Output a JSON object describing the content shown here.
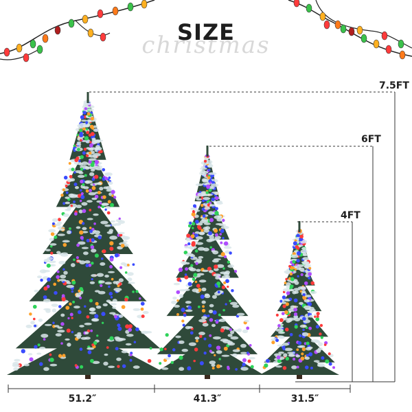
{
  "header": {
    "title": "SIZE",
    "subtitle": "christmas"
  },
  "heights": [
    {
      "label": "7.5FT"
    },
    {
      "label": "6FT"
    },
    {
      "label": "4FT"
    }
  ],
  "widths": [
    {
      "label": "51.2″"
    },
    {
      "label": "41.3″"
    },
    {
      "label": "31.5″"
    }
  ],
  "colors": {
    "text": "#1e1e1e",
    "watermark": "#d8d8d8",
    "needle_dark": "#2f4a3a",
    "needle_frost": "#d9e6ea",
    "light_blue": "#3a4cff",
    "light_green": "#2fd35a",
    "light_red": "#ff3b3b",
    "light_orange": "#ffa12b",
    "light_purple": "#b04cff"
  }
}
